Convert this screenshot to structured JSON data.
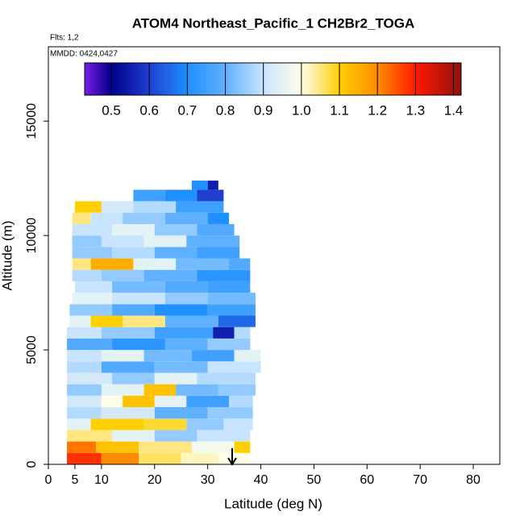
{
  "chart_data": {
    "type": "curtain",
    "title": "ATOM4 Northeast_Pacific_1 CH2Br2_TOGA",
    "annotations": [
      "Flts: 1,2",
      "MMDD: 0424,0427"
    ],
    "x_label": "Latitude (deg N)",
    "y_label": "Altitude (m)",
    "xlim": [
      0,
      85
    ],
    "xticks": [
      0,
      5,
      10,
      20,
      30,
      40,
      50,
      60,
      70,
      80
    ],
    "ylim": [
      0,
      18250
    ],
    "yticks": [
      0,
      5000,
      10000,
      15000
    ],
    "colorbar_lim": [
      0.43,
      1.42
    ],
    "colorbar_ticks": [
      0.5,
      0.6,
      0.7,
      0.8,
      0.9,
      {
        "value": 1,
        "label": "1.0"
      },
      1.1,
      1.2,
      1.3,
      1.4
    ],
    "colorscale": [
      [
        0.43,
        "#7a1fe6"
      ],
      [
        0.5,
        "#00008b"
      ],
      [
        0.6,
        "#1f3fd0"
      ],
      [
        0.7,
        "#1e90ff"
      ],
      [
        0.8,
        "#5fb0ff"
      ],
      [
        0.9,
        "#c8e4ff"
      ],
      [
        1.0,
        "#ffffe8"
      ],
      [
        1.05,
        "#ffe680"
      ],
      [
        1.1,
        "#ffd000"
      ],
      [
        1.2,
        "#ff8c00"
      ],
      [
        1.3,
        "#ff1a00"
      ],
      [
        1.42,
        "#901010"
      ]
    ],
    "rows": [
      {
        "alt": [
          0,
          500
        ],
        "lat": [
          3.5,
          10,
          17,
          25,
          32,
          38
        ],
        "values": [
          1.28,
          1.2,
          1.06,
          1.02,
          1.0
        ]
      },
      {
        "alt": [
          500,
          1000
        ],
        "lat": [
          3.5,
          9,
          17,
          27,
          35,
          38
        ],
        "values": [
          1.22,
          1.12,
          1.05,
          0.98,
          1.1
        ]
      },
      {
        "alt": [
          1000,
          1500
        ],
        "lat": [
          3.5,
          12,
          20,
          28,
          38
        ],
        "values": [
          1.05,
          0.95,
          0.85,
          0.9
        ]
      },
      {
        "alt": [
          1500,
          2000
        ],
        "lat": [
          3.5,
          8,
          18,
          26,
          33,
          38.5
        ],
        "values": [
          0.95,
          1.1,
          1.08,
          0.85,
          0.9
        ]
      },
      {
        "alt": [
          2000,
          2500
        ],
        "lat": [
          3.5,
          10,
          20,
          30,
          38.5
        ],
        "values": [
          0.88,
          0.92,
          0.8,
          0.85
        ]
      },
      {
        "alt": [
          2500,
          3000
        ],
        "lat": [
          3.5,
          10,
          14,
          20,
          26,
          34,
          38.5
        ],
        "values": [
          0.92,
          1.0,
          1.12,
          0.95,
          0.75,
          0.88
        ]
      },
      {
        "alt": [
          3000,
          3500
        ],
        "lat": [
          3.5,
          10,
          18,
          24,
          32,
          39
        ],
        "values": [
          0.85,
          0.95,
          1.12,
          0.82,
          0.85
        ]
      },
      {
        "alt": [
          3500,
          4000
        ],
        "lat": [
          3.5,
          12,
          20,
          28,
          39
        ],
        "values": [
          0.92,
          0.85,
          0.95,
          0.88
        ]
      },
      {
        "alt": [
          4000,
          4500
        ],
        "lat": [
          3.5,
          10,
          20,
          30,
          40
        ],
        "values": [
          0.88,
          0.78,
          0.82,
          0.9
        ]
      },
      {
        "alt": [
          4500,
          5000
        ],
        "lat": [
          3.5,
          10,
          18,
          27,
          35,
          40
        ],
        "values": [
          0.9,
          0.95,
          0.82,
          0.75,
          0.95
        ]
      },
      {
        "alt": [
          5000,
          5500
        ],
        "lat": [
          3.5,
          12,
          22,
          30,
          38
        ],
        "values": [
          0.78,
          0.72,
          0.8,
          0.85
        ]
      },
      {
        "alt": [
          5500,
          6000
        ],
        "lat": [
          3.5,
          10,
          20,
          31,
          35,
          38
        ],
        "values": [
          0.9,
          0.85,
          0.75,
          0.55,
          0.88
        ]
      },
      {
        "alt": [
          6000,
          6500
        ],
        "lat": [
          4,
          8,
          14,
          22,
          32,
          39
        ],
        "values": [
          0.95,
          1.1,
          1.05,
          0.8,
          0.65
        ]
      },
      {
        "alt": [
          6500,
          7000
        ],
        "lat": [
          4,
          12,
          20,
          30,
          39
        ],
        "values": [
          0.85,
          0.78,
          0.7,
          0.75
        ]
      },
      {
        "alt": [
          7000,
          7500
        ],
        "lat": [
          4.5,
          12,
          22,
          30,
          39
        ],
        "values": [
          0.95,
          0.9,
          0.85,
          0.82
        ]
      },
      {
        "alt": [
          7500,
          8000
        ],
        "lat": [
          5,
          12,
          22,
          30,
          38
        ],
        "values": [
          0.9,
          0.82,
          0.78,
          0.75
        ]
      },
      {
        "alt": [
          8000,
          8500
        ],
        "lat": [
          4.5,
          10,
          18,
          28,
          38
        ],
        "values": [
          0.88,
          0.85,
          0.8,
          0.72
        ]
      },
      {
        "alt": [
          8500,
          9000
        ],
        "lat": [
          4.5,
          8,
          16,
          24,
          34,
          38
        ],
        "values": [
          1.05,
          1.15,
          0.95,
          0.82,
          0.78
        ]
      },
      {
        "alt": [
          9000,
          9500
        ],
        "lat": [
          4.5,
          12,
          20,
          28,
          36
        ],
        "values": [
          0.85,
          0.88,
          0.8,
          0.75
        ]
      },
      {
        "alt": [
          9500,
          10000
        ],
        "lat": [
          4.5,
          10,
          18,
          26,
          36
        ],
        "values": [
          0.85,
          0.9,
          0.95,
          0.8
        ]
      },
      {
        "alt": [
          10000,
          10500
        ],
        "lat": [
          4.5,
          12,
          20,
          28,
          35
        ],
        "values": [
          0.9,
          0.95,
          0.85,
          0.78
        ]
      },
      {
        "alt": [
          10500,
          11000
        ],
        "lat": [
          4.5,
          8,
          14,
          22,
          30,
          34
        ],
        "values": [
          1.05,
          0.9,
          0.85,
          0.8,
          0.7
        ]
      },
      {
        "alt": [
          11000,
          11500
        ],
        "lat": [
          5,
          10,
          16,
          24,
          33
        ],
        "values": [
          1.1,
          0.92,
          0.88,
          0.75
        ]
      },
      {
        "alt": [
          11500,
          12000
        ],
        "lat": [
          16,
          22,
          28,
          33
        ],
        "values": [
          0.75,
          0.7,
          0.6
        ]
      },
      {
        "alt": [
          12000,
          12400
        ],
        "lat": [
          27,
          30,
          32
        ],
        "values": [
          0.7,
          0.55
        ]
      }
    ]
  }
}
